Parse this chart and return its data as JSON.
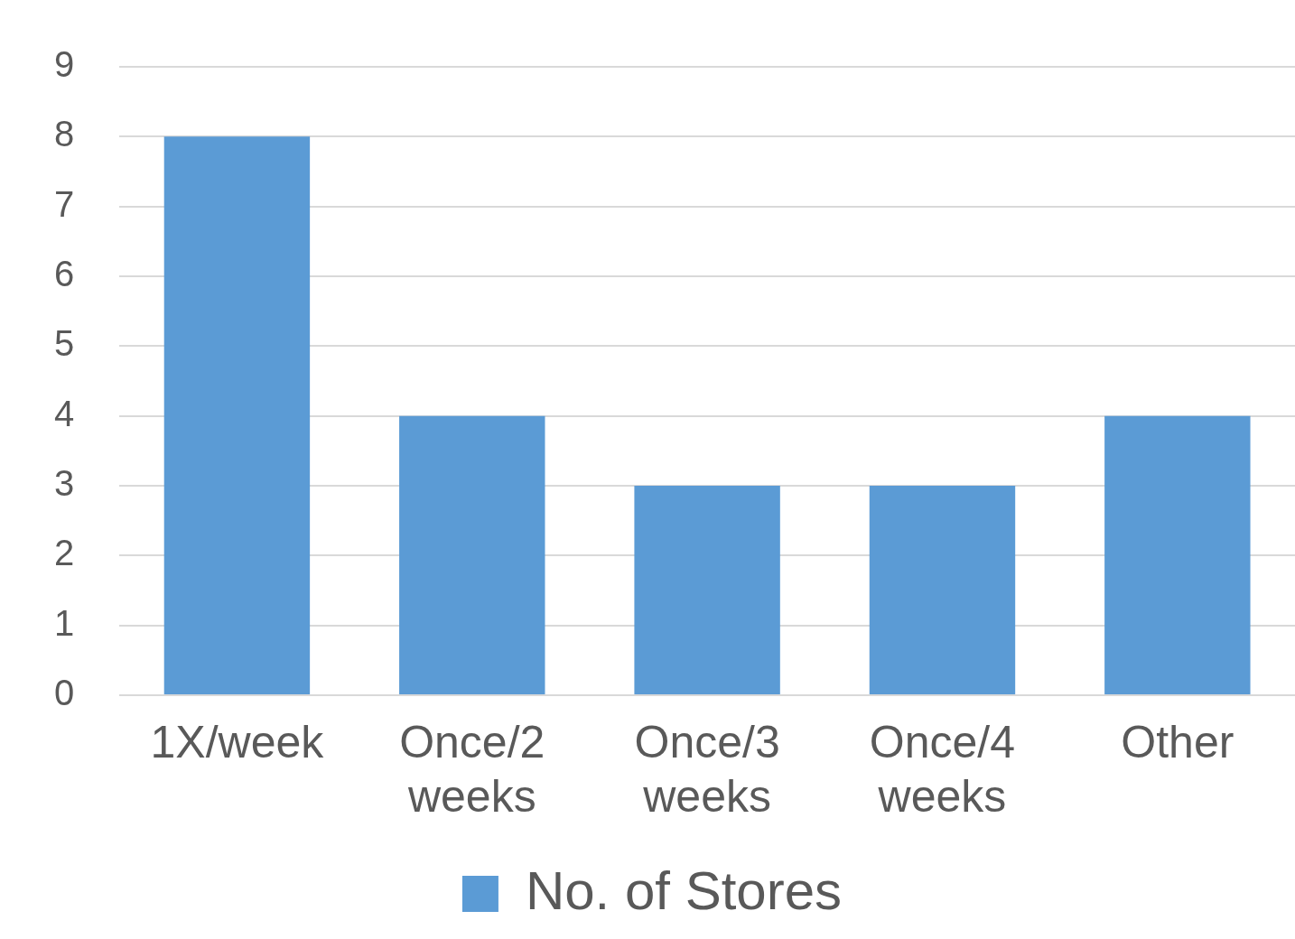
{
  "chart_data": {
    "type": "bar",
    "categories": [
      "1X/week",
      "Once/2 weeks",
      "Once/3 weeks",
      "Once/4 weeks",
      "Other"
    ],
    "series": [
      {
        "name": "No. of Stores",
        "color": "#5b9bd5",
        "values": [
          8,
          4,
          3,
          3,
          4
        ]
      }
    ],
    "ylim": [
      0,
      9
    ],
    "yticks": [
      0,
      1,
      2,
      3,
      4,
      5,
      6,
      7,
      8,
      9
    ],
    "grid": "y",
    "legend": "bottom"
  }
}
